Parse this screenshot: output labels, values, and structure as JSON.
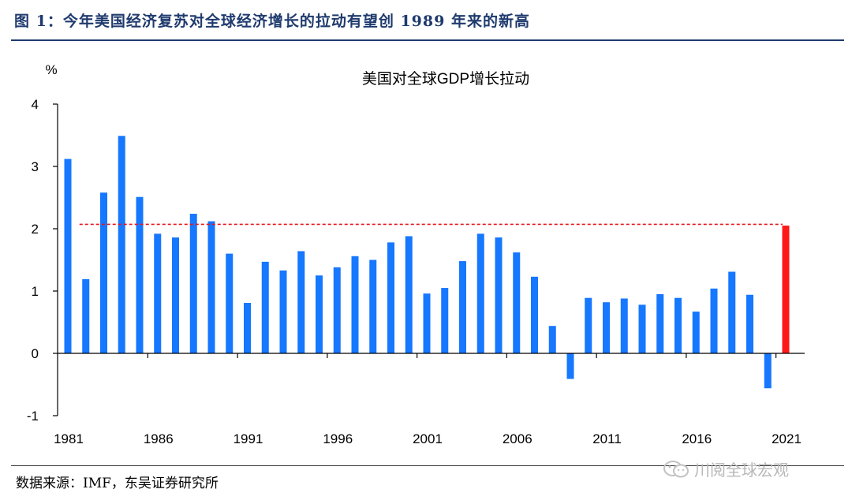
{
  "figure": {
    "title": "图 1：今年美国经济复苏对全球经济增长的拉动有望创 1989 年来的新高",
    "source": "数据来源：IMF，东吴证券研究所",
    "watermark": "川阅全球宏观",
    "watermark_icon": "wechat-icon"
  },
  "chart_data": {
    "type": "bar",
    "title": "美国对全球GDP增长拉动",
    "ylabel": "%",
    "xlabel": "",
    "ylim": [
      -1,
      4
    ],
    "yticks": [
      -1,
      0,
      1,
      2,
      3,
      4
    ],
    "xtick_labels": [
      "1981",
      "1986",
      "1991",
      "1996",
      "2001",
      "2006",
      "2011",
      "2016",
      "2021"
    ],
    "categories": [
      1981,
      1982,
      1983,
      1984,
      1985,
      1986,
      1987,
      1988,
      1989,
      1990,
      1991,
      1992,
      1993,
      1994,
      1995,
      1996,
      1997,
      1998,
      1999,
      2000,
      2001,
      2002,
      2003,
      2004,
      2005,
      2006,
      2007,
      2008,
      2009,
      2010,
      2011,
      2012,
      2013,
      2014,
      2015,
      2016,
      2017,
      2018,
      2019,
      2020,
      2021
    ],
    "values": [
      3.12,
      1.19,
      2.58,
      3.49,
      2.51,
      1.92,
      1.86,
      2.24,
      2.12,
      1.6,
      0.81,
      1.47,
      1.33,
      1.64,
      1.25,
      1.38,
      1.56,
      1.5,
      1.78,
      1.88,
      0.96,
      1.05,
      1.48,
      1.92,
      1.86,
      1.62,
      1.23,
      0.44,
      -0.41,
      0.89,
      0.82,
      0.88,
      0.78,
      0.95,
      0.89,
      0.67,
      1.04,
      1.31,
      0.94,
      -0.56,
      2.05
    ],
    "highlight_category": 2021,
    "reference_line": 2.07,
    "grid": false,
    "colors": {
      "bar": "#1677ff",
      "highlight": "#ff1a1a",
      "reference": "#e8161c",
      "axis": "#000000"
    }
  }
}
